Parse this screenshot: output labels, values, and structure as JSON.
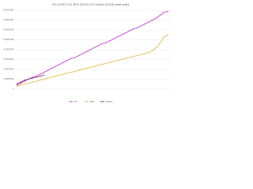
{
  "chart_data": {
    "type": "line",
    "title": "DS (2007) VS 3DS (2012) VS Switch (2023) total sales",
    "categories": [
      null,
      null,
      null,
      null,
      null,
      null,
      null,
      null,
      null,
      null,
      null,
      null,
      null,
      null,
      null,
      null,
      null,
      null,
      null,
      null,
      null,
      null,
      null,
      null,
      null,
      null,
      null,
      null,
      null,
      null,
      null,
      null,
      null,
      null,
      null,
      null,
      null,
      null,
      null,
      null
    ],
    "series": [
      {
        "name": "DS",
        "color": "#c03cd8",
        "values": [
          4000000,
          6000000,
          8000000,
          10000000,
          12000000,
          13000000,
          15000000,
          17000000,
          19000000,
          21000000,
          23000000,
          25000000,
          27000000,
          29000000,
          31000000,
          32000000,
          34000000,
          36000000,
          38000000,
          40000000,
          42000000,
          44000000,
          46000000,
          47000000,
          49000000,
          51000000,
          53000000,
          55000000,
          57000000,
          59000000,
          61000000,
          62000000,
          64000000,
          66000000,
          68000000,
          70000000,
          72000000,
          75000000,
          78000000,
          79000000
        ]
      },
      {
        "name": "3DS",
        "color": "#e8b84a",
        "values": [
          3000000,
          4000000,
          5000000,
          6000000,
          7000000,
          8000000,
          9000000,
          10000000,
          11000000,
          12000000,
          13000000,
          14000000,
          15000000,
          16000000,
          17000000,
          18000000,
          19000000,
          20000000,
          21000000,
          22000000,
          23000000,
          24000000,
          25000000,
          26000000,
          27000000,
          28000000,
          29000000,
          30000000,
          31000000,
          32000000,
          33000000,
          34000000,
          35000000,
          36000000,
          37000000,
          39000000,
          42000000,
          47000000,
          53000000,
          55000000
        ]
      },
      {
        "name": "Switch",
        "color": "#8e2a5a",
        "values": [
          5000000,
          7000000,
          9000000,
          10000000,
          11000000,
          12000000,
          13000000,
          14000000,
          null,
          null,
          null,
          null,
          null,
          null,
          null,
          null,
          null,
          null,
          null,
          null,
          null,
          null,
          null,
          null,
          null,
          null,
          null,
          null,
          null,
          null,
          null,
          null,
          null,
          null,
          null,
          null,
          null,
          null,
          null,
          null
        ]
      }
    ],
    "ylim": [
      0,
      80000000
    ],
    "yticks": [
      {
        "value": 0,
        "label": "0"
      },
      {
        "value": 10000000,
        "label": "10,000,000"
      },
      {
        "value": 20000000,
        "label": "20,000,000"
      },
      {
        "value": 30000000,
        "label": "30,000,000"
      },
      {
        "value": 40000000,
        "label": "40,000,000"
      },
      {
        "value": 50000000,
        "label": "50,000,000"
      },
      {
        "value": 60000000,
        "label": "60,000,000"
      },
      {
        "value": 70000000,
        "label": "70,000,000"
      },
      {
        "value": 80000000,
        "label": "80,000,000"
      }
    ],
    "grid": true,
    "legend": "bottom"
  }
}
